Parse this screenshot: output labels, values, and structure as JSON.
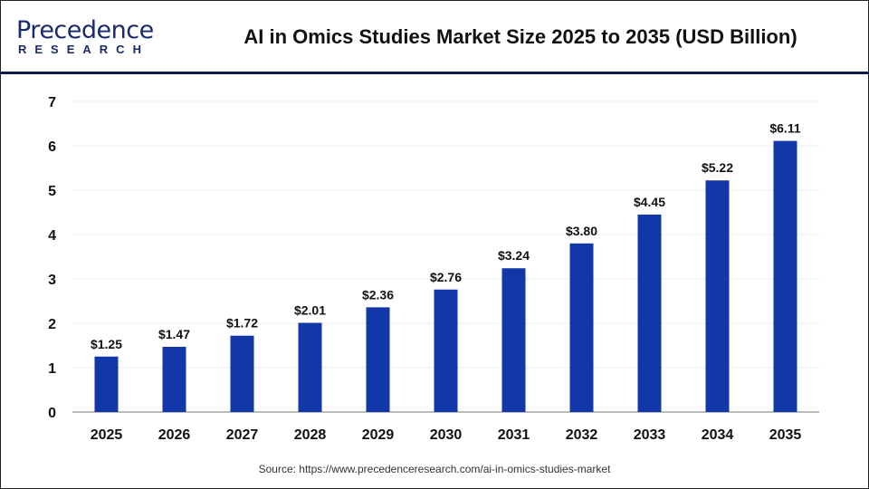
{
  "header": {
    "logo_main": "Precedence",
    "logo_sub": "RESEARCH",
    "title": "AI in Omics Studies Market Size 2025 to 2035 (USD Billion)"
  },
  "source": "Source: https://www.precedenceresearch.com/ai-in-omics-studies-market",
  "chart_data": {
    "type": "bar",
    "title": "AI in Omics Studies Market Size 2025 to 2035 (USD Billion)",
    "categories": [
      "2025",
      "2026",
      "2027",
      "2028",
      "2029",
      "2030",
      "2031",
      "2032",
      "2033",
      "2034",
      "2035"
    ],
    "values": [
      1.25,
      1.47,
      1.72,
      2.01,
      2.36,
      2.76,
      3.24,
      3.8,
      4.45,
      5.22,
      6.11
    ],
    "data_labels": [
      "$1.25",
      "$1.47",
      "$1.72",
      "$2.01",
      "$2.36",
      "$2.76",
      "$3.24",
      "$3.80",
      "$4.45",
      "$5.22",
      "$6.11"
    ],
    "ylim": [
      0,
      7
    ],
    "yticks": [
      "0",
      "1",
      "2",
      "3",
      "4",
      "5",
      "6",
      "7"
    ],
    "grid": true,
    "bar_color": "#1237a8",
    "xlabel": "",
    "ylabel": ""
  }
}
